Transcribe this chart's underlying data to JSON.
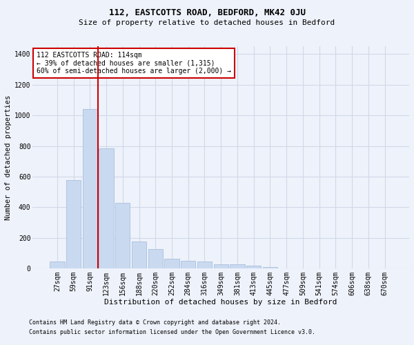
{
  "title": "112, EASTCOTTS ROAD, BEDFORD, MK42 0JU",
  "subtitle": "Size of property relative to detached houses in Bedford",
  "xlabel": "Distribution of detached houses by size in Bedford",
  "ylabel": "Number of detached properties",
  "footnote1": "Contains HM Land Registry data © Crown copyright and database right 2024.",
  "footnote2": "Contains public sector information licensed under the Open Government Licence v3.0.",
  "categories": [
    "27sqm",
    "59sqm",
    "91sqm",
    "123sqm",
    "156sqm",
    "188sqm",
    "220sqm",
    "252sqm",
    "284sqm",
    "316sqm",
    "349sqm",
    "381sqm",
    "413sqm",
    "445sqm",
    "477sqm",
    "509sqm",
    "541sqm",
    "574sqm",
    "606sqm",
    "638sqm",
    "670sqm"
  ],
  "values": [
    47,
    578,
    1040,
    783,
    430,
    178,
    128,
    65,
    50,
    45,
    28,
    27,
    20,
    13,
    0,
    0,
    0,
    0,
    0,
    0,
    0
  ],
  "bar_color": "#c9d9f0",
  "bar_edge_color": "#a0b8d8",
  "grid_color": "#d0d8e8",
  "background_color": "#eef2fa",
  "vline_color": "#cc0000",
  "annotation_line1": "112 EASTCOTTS ROAD: 114sqm",
  "annotation_line2": "← 39% of detached houses are smaller (1,315)",
  "annotation_line3": "60% of semi-detached houses are larger (2,000) →",
  "annotation_box_color": "#ffffff",
  "annotation_box_edge": "#cc0000",
  "ylim": [
    0,
    1450
  ],
  "yticks": [
    0,
    200,
    400,
    600,
    800,
    1000,
    1200,
    1400
  ],
  "title_fontsize": 9,
  "subtitle_fontsize": 8,
  "ylabel_fontsize": 7.5,
  "xlabel_fontsize": 8,
  "tick_fontsize": 7,
  "annot_fontsize": 7,
  "footnote_fontsize": 6
}
